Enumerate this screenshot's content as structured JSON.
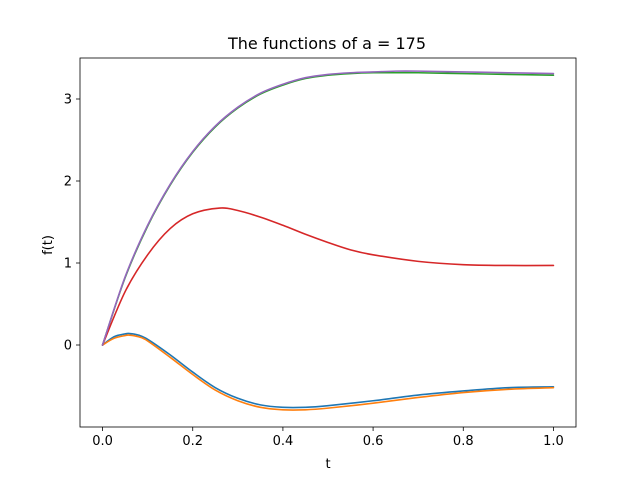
{
  "chart_data": {
    "type": "line",
    "title": "The functions of a = 175",
    "xlabel": "t",
    "ylabel": "f(t)",
    "xlim": [
      -0.05,
      1.05
    ],
    "ylim": [
      -1.0,
      3.5
    ],
    "xticks": [
      0.0,
      0.2,
      0.4,
      0.6,
      0.8,
      1.0
    ],
    "xtick_labels": [
      "0.0",
      "0.2",
      "0.4",
      "0.6",
      "0.8",
      "1.0"
    ],
    "yticks": [
      0,
      1,
      2,
      3
    ],
    "ytick_labels": [
      "0",
      "1",
      "2",
      "3"
    ],
    "grid": false,
    "series": [
      {
        "color": "#1f77b4",
        "x": [
          0.0,
          0.025,
          0.05,
          0.06,
          0.08,
          0.1,
          0.15,
          0.2,
          0.25,
          0.3,
          0.35,
          0.4,
          0.45,
          0.5,
          0.6,
          0.7,
          0.8,
          0.9,
          1.0
        ],
        "y": [
          0.0,
          0.1,
          0.135,
          0.14,
          0.12,
          0.07,
          -0.12,
          -0.33,
          -0.52,
          -0.65,
          -0.73,
          -0.76,
          -0.76,
          -0.74,
          -0.68,
          -0.61,
          -0.56,
          -0.52,
          -0.51
        ]
      },
      {
        "color": "#ff7f0e",
        "x": [
          0.0,
          0.025,
          0.05,
          0.06,
          0.08,
          0.1,
          0.15,
          0.2,
          0.25,
          0.3,
          0.35,
          0.4,
          0.45,
          0.5,
          0.6,
          0.7,
          0.8,
          0.9,
          1.0
        ],
        "y": [
          0.0,
          0.08,
          0.115,
          0.12,
          0.1,
          0.05,
          -0.15,
          -0.36,
          -0.55,
          -0.68,
          -0.76,
          -0.79,
          -0.79,
          -0.77,
          -0.71,
          -0.64,
          -0.58,
          -0.54,
          -0.52
        ]
      },
      {
        "color": "#2ca02c",
        "x": [
          0.0,
          0.05,
          0.1,
          0.15,
          0.2,
          0.25,
          0.3,
          0.35,
          0.4,
          0.45,
          0.5,
          0.55,
          0.6,
          0.65,
          0.7,
          0.8,
          0.9,
          1.0
        ],
        "y": [
          0.0,
          0.82,
          1.45,
          1.95,
          2.35,
          2.66,
          2.89,
          3.06,
          3.17,
          3.25,
          3.29,
          3.31,
          3.32,
          3.32,
          3.32,
          3.31,
          3.3,
          3.29
        ]
      },
      {
        "color": "#d62728",
        "x": [
          0.0,
          0.05,
          0.1,
          0.15,
          0.2,
          0.26,
          0.3,
          0.35,
          0.4,
          0.45,
          0.5,
          0.55,
          0.6,
          0.7,
          0.8,
          0.9,
          1.0
        ],
        "y": [
          0.0,
          0.65,
          1.1,
          1.42,
          1.6,
          1.67,
          1.64,
          1.56,
          1.46,
          1.35,
          1.25,
          1.16,
          1.1,
          1.02,
          0.98,
          0.97,
          0.97
        ]
      },
      {
        "color": "#9467bd",
        "x": [
          0.0,
          0.05,
          0.1,
          0.15,
          0.2,
          0.25,
          0.3,
          0.35,
          0.4,
          0.45,
          0.5,
          0.55,
          0.6,
          0.65,
          0.7,
          0.8,
          0.9,
          1.0
        ],
        "y": [
          0.0,
          0.83,
          1.46,
          1.96,
          2.36,
          2.67,
          2.9,
          3.07,
          3.18,
          3.26,
          3.3,
          3.32,
          3.33,
          3.34,
          3.34,
          3.33,
          3.32,
          3.31
        ]
      }
    ]
  }
}
